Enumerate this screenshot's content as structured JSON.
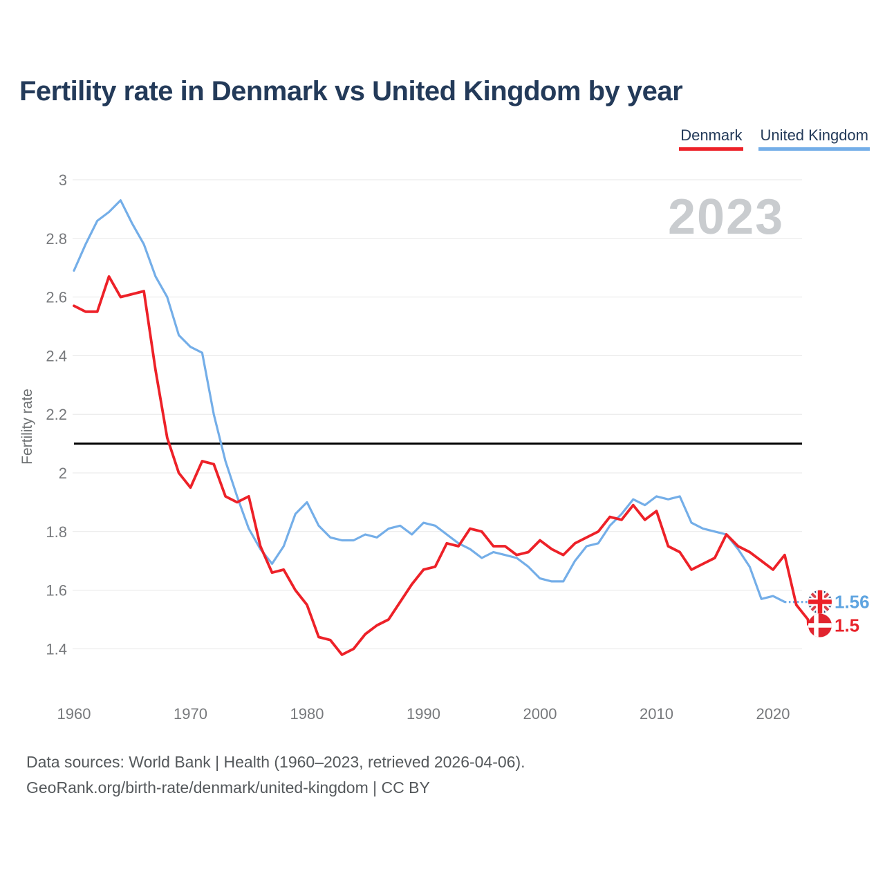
{
  "header": {
    "title": "Fertility rate in Denmark vs United Kingdom by year"
  },
  "legend": {
    "items": [
      {
        "label": "Denmark",
        "color": "#ed2128"
      },
      {
        "label": "United Kingdom",
        "color": "#74aee8"
      }
    ]
  },
  "watermark": "2023",
  "chart_data": {
    "type": "line",
    "title": "Fertility rate in Denmark vs United Kingdom by year",
    "xlabel": "",
    "ylabel": "Fertility rate",
    "xlim": [
      1960,
      2023
    ],
    "ylim": [
      1.4,
      3.0
    ],
    "grid": true,
    "legend_position": "top-right",
    "x_ticks": [
      1960,
      1970,
      1980,
      1990,
      2000,
      2010,
      2020
    ],
    "y_ticks": [
      "3",
      "2.8",
      "2.6",
      "2.4",
      "2.2",
      "2",
      "1.8",
      "1.6",
      "1.4"
    ],
    "reference_line": {
      "value": 2.1,
      "color": "#000000"
    },
    "x": [
      1960,
      1961,
      1962,
      1963,
      1964,
      1965,
      1966,
      1967,
      1968,
      1969,
      1970,
      1971,
      1972,
      1973,
      1974,
      1975,
      1976,
      1977,
      1978,
      1979,
      1980,
      1981,
      1982,
      1983,
      1984,
      1985,
      1986,
      1987,
      1988,
      1989,
      1990,
      1991,
      1992,
      1993,
      1994,
      1995,
      1996,
      1997,
      1998,
      1999,
      2000,
      2001,
      2002,
      2003,
      2004,
      2005,
      2006,
      2007,
      2008,
      2009,
      2010,
      2011,
      2012,
      2013,
      2014,
      2015,
      2016,
      2017,
      2018,
      2019,
      2020,
      2021,
      2022,
      2023
    ],
    "series": [
      {
        "name": "Denmark",
        "color": "#ed2128",
        "values": [
          2.57,
          2.55,
          2.55,
          2.67,
          2.6,
          2.61,
          2.62,
          2.35,
          2.12,
          2.0,
          1.95,
          2.04,
          2.03,
          1.92,
          1.9,
          1.92,
          1.75,
          1.66,
          1.67,
          1.6,
          1.55,
          1.44,
          1.43,
          1.38,
          1.4,
          1.45,
          1.48,
          1.5,
          1.56,
          1.62,
          1.67,
          1.68,
          1.76,
          1.75,
          1.81,
          1.8,
          1.75,
          1.75,
          1.72,
          1.73,
          1.77,
          1.74,
          1.72,
          1.76,
          1.78,
          1.8,
          1.85,
          1.84,
          1.89,
          1.84,
          1.87,
          1.75,
          1.73,
          1.67,
          1.69,
          1.71,
          1.79,
          1.75,
          1.73,
          1.7,
          1.67,
          1.72,
          1.55,
          1.5
        ]
      },
      {
        "name": "United Kingdom",
        "color": "#74aee8",
        "values": [
          2.69,
          2.78,
          2.86,
          2.89,
          2.93,
          2.85,
          2.78,
          2.67,
          2.6,
          2.47,
          2.43,
          2.41,
          2.2,
          2.04,
          1.92,
          1.81,
          1.74,
          1.69,
          1.75,
          1.86,
          1.9,
          1.82,
          1.78,
          1.77,
          1.77,
          1.79,
          1.78,
          1.81,
          1.82,
          1.79,
          1.83,
          1.82,
          1.79,
          1.76,
          1.74,
          1.71,
          1.73,
          1.72,
          1.71,
          1.68,
          1.64,
          1.63,
          1.63,
          1.7,
          1.75,
          1.76,
          1.82,
          1.86,
          1.91,
          1.89,
          1.92,
          1.91,
          1.92,
          1.83,
          1.81,
          1.8,
          1.79,
          1.74,
          1.68,
          1.57,
          1.58,
          1.56,
          1.56,
          1.56
        ]
      }
    ],
    "end_labels": [
      {
        "series": "United Kingdom",
        "value": "1.56",
        "color": "#5ea4e0",
        "flag": "united-kingdom-flag"
      },
      {
        "series": "Denmark",
        "value": "1.5",
        "color": "#e8232b",
        "flag": "denmark-flag"
      }
    ]
  },
  "footer": {
    "line1": "Data sources: World Bank | Health (1960–2023, retrieved 2026-04-06).",
    "line2": "GeoRank.org/birth-rate/denmark/united-kingdom | CC BY"
  }
}
